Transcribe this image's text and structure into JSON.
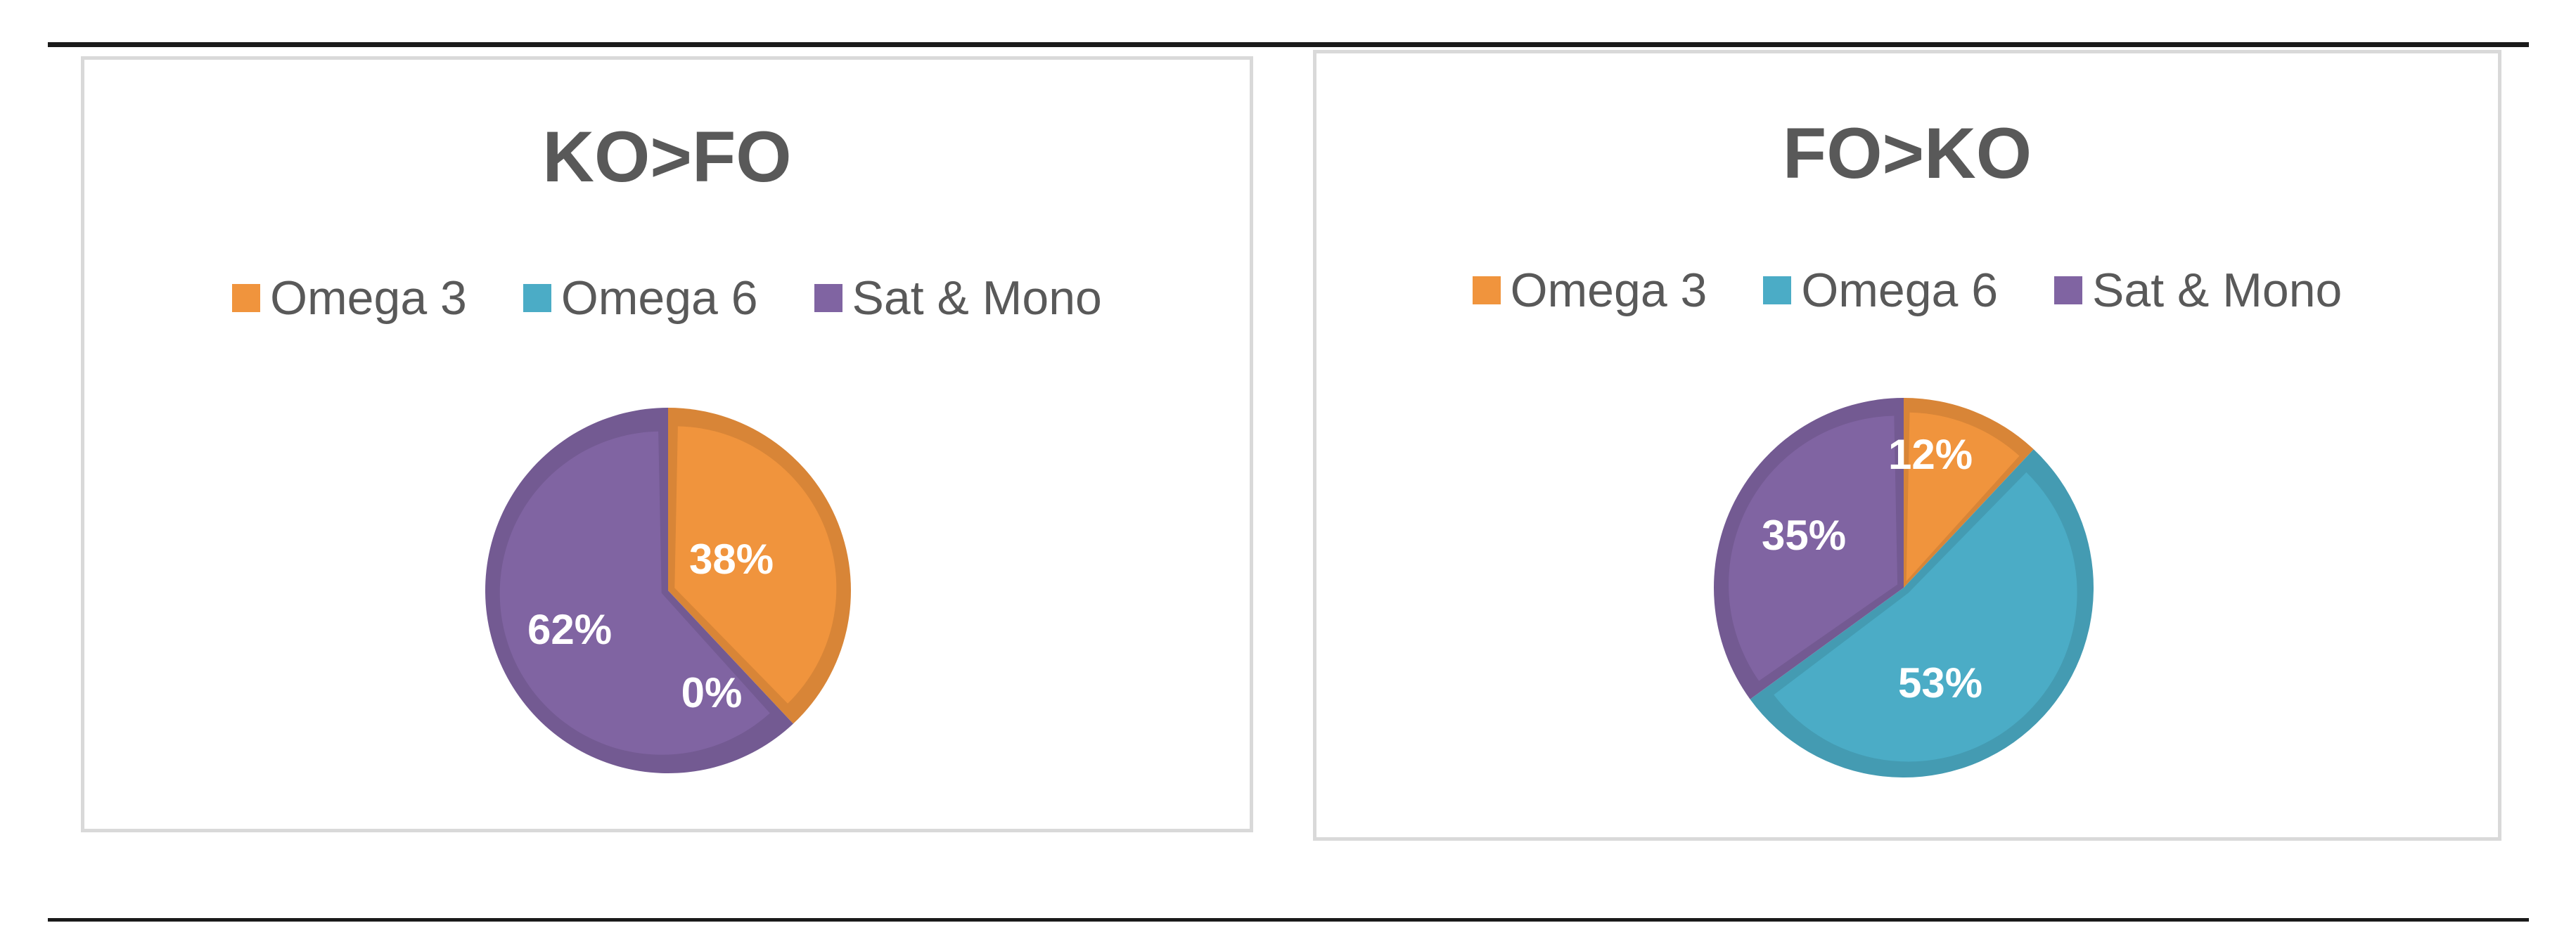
{
  "chart_data": [
    {
      "type": "pie",
      "title": "KO>FO",
      "legend_position": "top",
      "categories": [
        "Omega 3",
        "Omega 6",
        "Sat & Mono"
      ],
      "values": [
        38,
        0,
        62
      ],
      "data_labels": [
        "38%",
        "0%",
        "62%"
      ]
    },
    {
      "type": "pie",
      "title": "FO>KO",
      "legend_position": "top",
      "categories": [
        "Omega 3",
        "Omega 6",
        "Sat & Mono"
      ],
      "values": [
        12,
        53,
        35
      ],
      "data_labels": [
        "12%",
        "53%",
        "35%"
      ]
    }
  ],
  "colors": {
    "omega3": "#f0943d",
    "omega6": "#4bacc6",
    "sat_mono": "#8064a2"
  }
}
